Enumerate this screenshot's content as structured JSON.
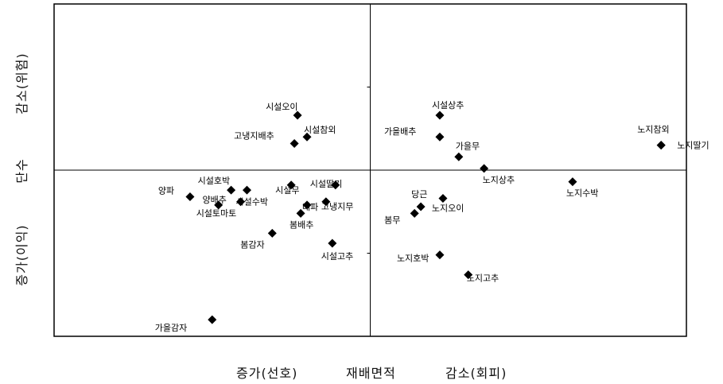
{
  "chart_data": {
    "type": "scatter",
    "title": "",
    "xlabel": {
      "left": "증가(선호)",
      "center": "재배면적",
      "right": "감소(회피)"
    },
    "ylabel": {
      "bottom": "증가(이익)",
      "center": "단수",
      "top": "감소(위험)"
    },
    "xlim": [
      -1.0,
      1.0
    ],
    "ylim": [
      -1.0,
      1.0
    ],
    "reference_lines": {
      "x": 0,
      "y": 0
    },
    "grid": false,
    "legend": "none",
    "marker": "diamond",
    "marker_color": "#000000",
    "points": [
      {
        "label": "시설오이",
        "x": -0.23,
        "y": 0.33
      },
      {
        "label": "시설참외",
        "x": -0.2,
        "y": 0.2
      },
      {
        "label": "고냉지배추",
        "x": -0.24,
        "y": 0.16
      },
      {
        "label": "시설상추",
        "x": 0.22,
        "y": 0.33
      },
      {
        "label": "가을배추",
        "x": 0.22,
        "y": 0.2
      },
      {
        "label": "가을무",
        "x": 0.28,
        "y": 0.08
      },
      {
        "label": "노지참외",
        "x": 0.92,
        "y": 0.15
      },
      {
        "label": "노지딸기",
        "x": 0.92,
        "y": 0.15
      },
      {
        "label": "양파",
        "x": -0.57,
        "y": -0.16
      },
      {
        "label": "시설호박",
        "x": -0.44,
        "y": -0.12
      },
      {
        "label": "시설수박",
        "x": -0.41,
        "y": -0.19
      },
      {
        "label": "시설토마토",
        "x": -0.48,
        "y": -0.21
      },
      {
        "label": "양배추",
        "x": -0.39,
        "y": -0.12
      },
      {
        "label": "시설무",
        "x": -0.25,
        "y": -0.09
      },
      {
        "label": "시설딸기",
        "x": -0.11,
        "y": -0.09
      },
      {
        "label": "대파",
        "x": -0.2,
        "y": -0.21
      },
      {
        "label": "고냉지무",
        "x": -0.14,
        "y": -0.19
      },
      {
        "label": "봄배추",
        "x": -0.22,
        "y": -0.26
      },
      {
        "label": "봄감자",
        "x": -0.31,
        "y": -0.38
      },
      {
        "label": "시설고추",
        "x": -0.12,
        "y": -0.44
      },
      {
        "label": "가을감자",
        "x": -0.5,
        "y": -0.9
      },
      {
        "label": "노지상추",
        "x": 0.36,
        "y": 0.01
      },
      {
        "label": "노지수박",
        "x": 0.64,
        "y": -0.07
      },
      {
        "label": "당근",
        "x": 0.16,
        "y": -0.22
      },
      {
        "label": "봄무",
        "x": 0.14,
        "y": -0.26
      },
      {
        "label": "노지오이",
        "x": 0.23,
        "y": -0.17
      },
      {
        "label": "노지호박",
        "x": 0.22,
        "y": -0.51
      },
      {
        "label": "노지고추",
        "x": 0.31,
        "y": -0.63
      }
    ]
  }
}
